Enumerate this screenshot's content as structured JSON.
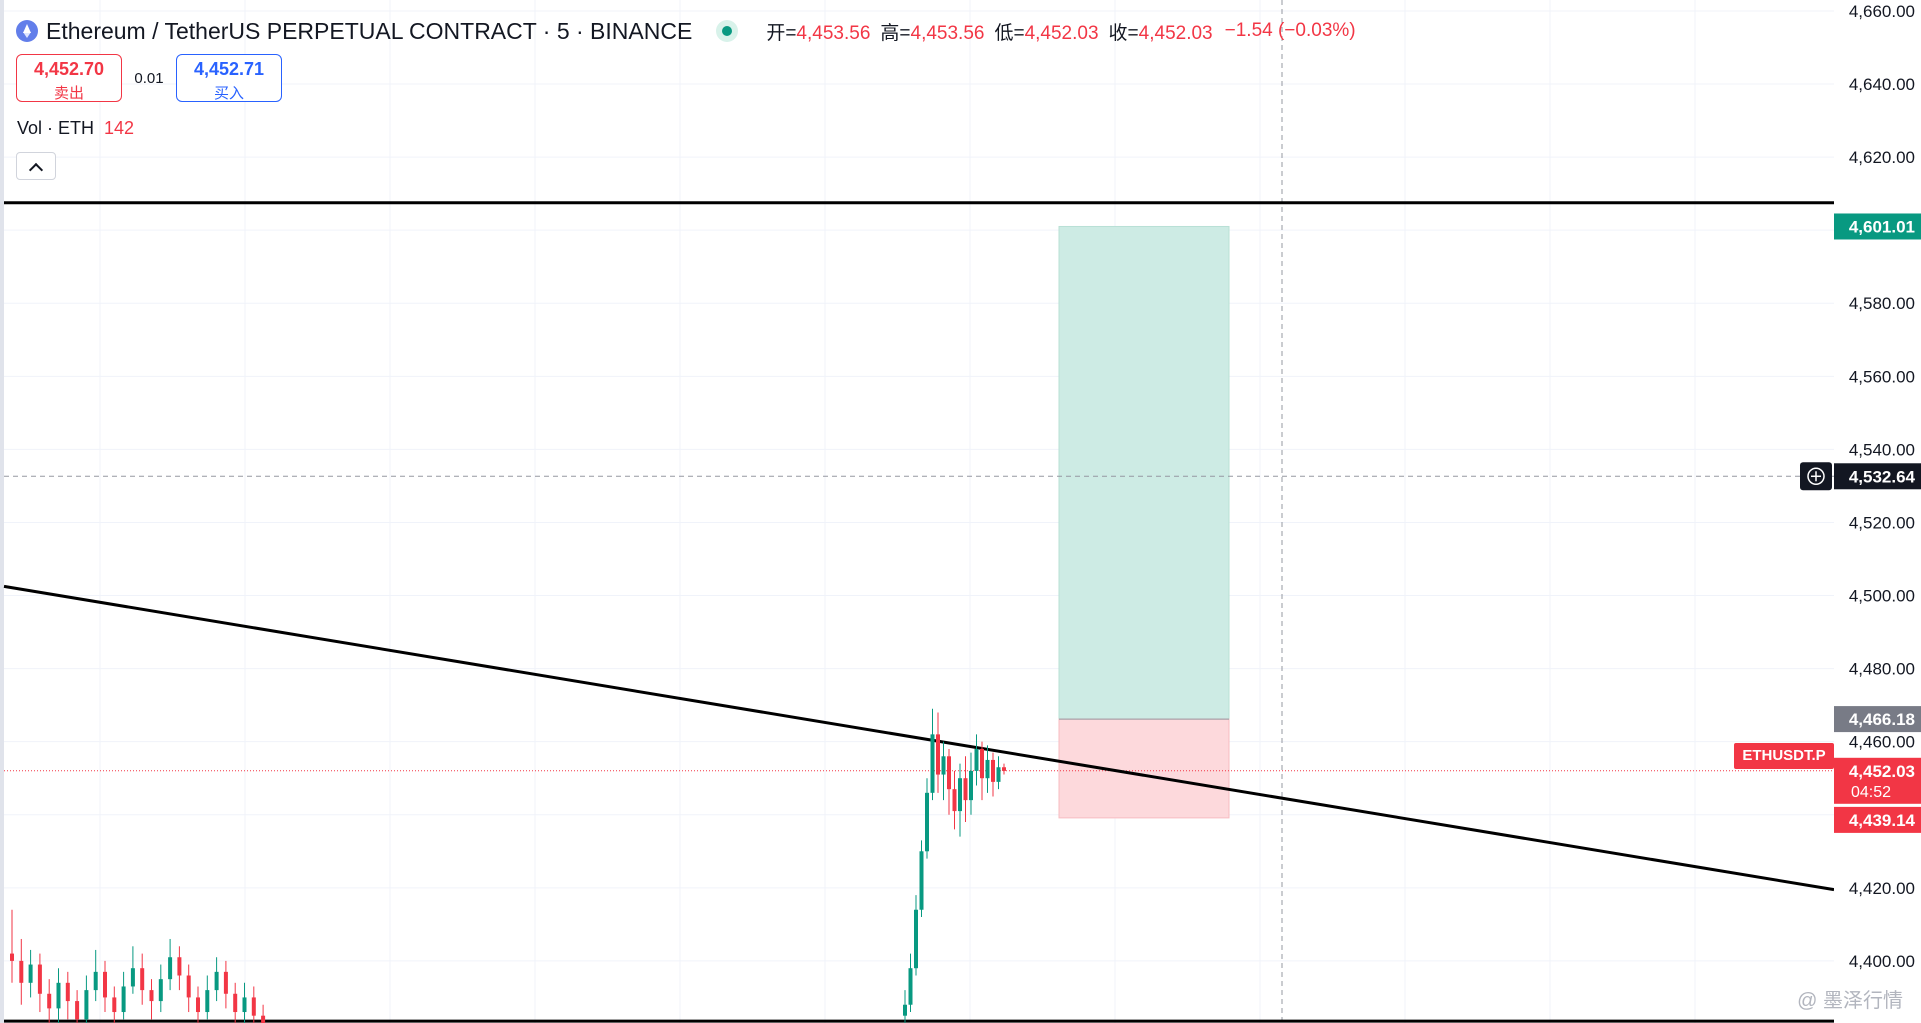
{
  "header": {
    "symbol_title": "Ethereum / TetherUS PERPETUAL CONTRACT · 5 · BINANCE",
    "ohlc": [
      {
        "key": "开=",
        "value": "4,453.56"
      },
      {
        "key": "高=",
        "value": "4,453.56"
      },
      {
        "key": "低=",
        "value": "4,452.03"
      },
      {
        "key": "收=",
        "value": "4,452.03"
      }
    ],
    "change": "−1.54 (−0.03%)"
  },
  "trade": {
    "sell_price": "4,452.70",
    "sell_label": "卖出",
    "spread": "0.01",
    "buy_price": "4,452.71",
    "buy_label": "买入"
  },
  "volume": {
    "label": "Vol · ETH",
    "value": "142"
  },
  "symbol_tag": "ETHUSDT.P",
  "watermark": "@ 墨泽行情",
  "colors": {
    "up": "#089981",
    "down": "#f23645",
    "profit_zone": "#cdebe4",
    "loss_zone": "#fdd9dc",
    "line": "#000000"
  },
  "chart_data": {
    "type": "candlestick",
    "y_axis": {
      "range": [
        4383,
        4663
      ],
      "ticks": [
        4400,
        4420,
        4440,
        4460,
        4480,
        4500,
        4520,
        4540,
        4560,
        4580,
        4600,
        4620,
        4640,
        4660
      ],
      "tick_labels": [
        "4,400.00",
        "4,420.00",
        "4,440.00",
        "4,460.00",
        "4,480.00",
        "4,500.00",
        "4,520.00",
        "4,540.00",
        "4,560.00",
        "4,580.00",
        "4,600.00",
        "4,620.00",
        "4,640.00",
        "4,660.00"
      ]
    },
    "price_labels": {
      "target": "4,601.01",
      "crosshair": "4,532.64",
      "entry": "4,466.18",
      "last": "4,452.03",
      "countdown": "04:52",
      "stop": "4,439.14"
    },
    "levels": {
      "target": 4601.01,
      "crosshair": 4532.64,
      "entry": 4466.18,
      "last": 4452.03,
      "stop": 4439.14,
      "resistance": 4607.5,
      "support": 4383.5
    },
    "trendline": {
      "start": 4502.5,
      "end": 4419.5
    },
    "candles_left": [
      [
        4402,
        4400,
        4414,
        4394
      ],
      [
        4400,
        4394,
        4406,
        4388
      ],
      [
        4394,
        4399,
        4403,
        4390
      ],
      [
        4399,
        4391,
        4402,
        4386
      ],
      [
        4391,
        4387,
        4395,
        4382
      ],
      [
        4387,
        4394,
        4398,
        4383
      ],
      [
        4394,
        4389,
        4397,
        4384
      ],
      [
        4389,
        4384,
        4392,
        4380
      ],
      [
        4384,
        4392,
        4396,
        4382
      ],
      [
        4392,
        4397,
        4403,
        4389
      ],
      [
        4397,
        4390,
        4400,
        4386
      ],
      [
        4390,
        4386,
        4393,
        4381
      ],
      [
        4386,
        4393,
        4397,
        4384
      ],
      [
        4393,
        4398,
        4404,
        4391
      ],
      [
        4398,
        4392,
        4402,
        4388
      ],
      [
        4392,
        4389,
        4395,
        4384
      ],
      [
        4389,
        4395,
        4399,
        4386
      ],
      [
        4395,
        4401,
        4406,
        4392
      ],
      [
        4401,
        4396,
        4404,
        4392
      ],
      [
        4396,
        4390,
        4399,
        4386
      ],
      [
        4390,
        4386,
        4393,
        4382
      ],
      [
        4386,
        4392,
        4396,
        4384
      ],
      [
        4392,
        4397,
        4401,
        4389
      ],
      [
        4397,
        4391,
        4400,
        4387
      ],
      [
        4391,
        4386,
        4394,
        4382
      ],
      [
        4386,
        4390,
        4394,
        4383
      ],
      [
        4390,
        4385,
        4393,
        4381
      ],
      [
        4385,
        4383,
        4388,
        4379
      ]
    ],
    "candles_right": [
      [
        4385,
        4388,
        4392,
        4382
      ],
      [
        4388,
        4398,
        4402,
        4386
      ],
      [
        4398,
        4414,
        4418,
        4396
      ],
      [
        4414,
        4430,
        4433,
        4412
      ],
      [
        4430,
        4446,
        4450,
        4428
      ],
      [
        4446,
        4462,
        4469,
        4444
      ],
      [
        4462,
        4451,
        4468,
        4446
      ],
      [
        4451,
        4456,
        4460,
        4444
      ],
      [
        4456,
        4447,
        4458,
        4440
      ],
      [
        4447,
        4441,
        4452,
        4436
      ],
      [
        4441,
        4450,
        4454,
        4434
      ],
      [
        4450,
        4444,
        4456,
        4438
      ],
      [
        4444,
        4452,
        4457,
        4440
      ],
      [
        4452,
        4458,
        4462,
        4448
      ],
      [
        4458,
        4450,
        4460,
        4444
      ],
      [
        4450,
        4455,
        4459,
        4446
      ],
      [
        4455,
        4449,
        4457,
        4445
      ],
      [
        4449,
        4453,
        4456,
        4447
      ],
      [
        4453,
        4452,
        4454,
        4451
      ]
    ]
  }
}
